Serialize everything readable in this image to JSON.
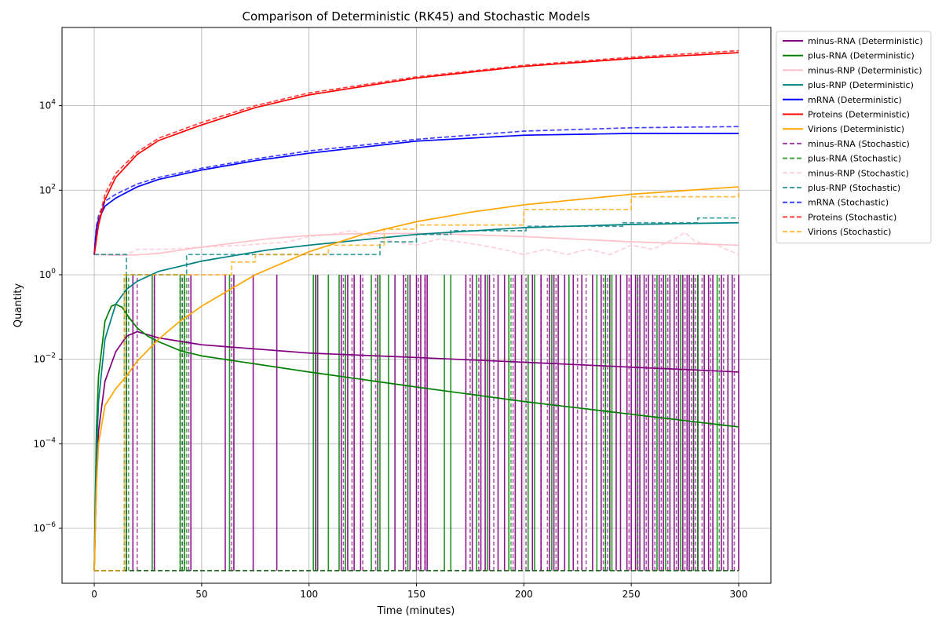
{
  "chart_data": {
    "type": "line",
    "title": "Comparison of Deterministic (RK45) and Stochastic Models",
    "xlabel": "Time (minutes)",
    "ylabel": "Quantity",
    "xlim": [
      -15,
      315
    ],
    "ylim_log10": [
      -7.3,
      5.85
    ],
    "yscale": "log",
    "grid": true,
    "legend_position": "outside top-right",
    "x_ticks": [
      0,
      50,
      100,
      150,
      200,
      250,
      300
    ],
    "y_ticks": [
      {
        "exp": 4,
        "label": "10^4"
      },
      {
        "exp": 2,
        "label": "10^2"
      },
      {
        "exp": 0,
        "label": "10^0"
      },
      {
        "exp": -2,
        "label": "10^-2"
      },
      {
        "exp": -4,
        "label": "10^-4"
      },
      {
        "exp": -6,
        "label": "10^-6"
      }
    ],
    "series": [
      {
        "name": "minus-RNA (Deterministic)",
        "color": "#800080",
        "style": "solid",
        "x": [
          0,
          1,
          2,
          5,
          10,
          15,
          20,
          25,
          30,
          50,
          100,
          150,
          200,
          250,
          300
        ],
        "y": [
          1e-07,
          1e-05,
          0.0002,
          0.003,
          0.015,
          0.035,
          0.045,
          0.038,
          0.032,
          0.022,
          0.014,
          0.011,
          0.0085,
          0.0065,
          0.005
        ]
      },
      {
        "name": "plus-RNA (Deterministic)",
        "color": "#008000",
        "style": "solid",
        "x": [
          0,
          1,
          2,
          5,
          8,
          10,
          13,
          16,
          20,
          25,
          30,
          40,
          50,
          100,
          150,
          200,
          250,
          300
        ],
        "y": [
          1e-07,
          0.0002,
          0.004,
          0.08,
          0.18,
          0.2,
          0.17,
          0.1,
          0.055,
          0.035,
          0.026,
          0.016,
          0.012,
          0.005,
          0.0022,
          0.001,
          0.0005,
          0.00025
        ]
      },
      {
        "name": "minus-RNP (Deterministic)",
        "color": "#ffc0cb",
        "style": "solid",
        "x": [
          0,
          10,
          20,
          30,
          50,
          80,
          100,
          120,
          150,
          170,
          200,
          250,
          300
        ],
        "y": [
          3,
          2.9,
          2.95,
          3.2,
          4.5,
          7,
          8.5,
          9.3,
          9.5,
          9,
          8,
          6,
          5
        ]
      },
      {
        "name": "plus-RNP (Deterministic)",
        "color": "#008080",
        "style": "solid",
        "x": [
          0,
          1,
          2,
          5,
          10,
          15,
          20,
          30,
          50,
          80,
          100,
          150,
          200,
          250,
          300
        ],
        "y": [
          1e-07,
          5e-05,
          0.001,
          0.03,
          0.2,
          0.45,
          0.7,
          1.2,
          2.1,
          3.8,
          5,
          9,
          13,
          15.5,
          17
        ]
      },
      {
        "name": "mRNA (Deterministic)",
        "color": "#0000ff",
        "style": "solid",
        "x": [
          0,
          1,
          2,
          5,
          10,
          20,
          30,
          50,
          75,
          100,
          150,
          200,
          250,
          300
        ],
        "y": [
          3,
          12,
          20,
          42,
          65,
          120,
          180,
          300,
          500,
          750,
          1450,
          2000,
          2200,
          2200
        ]
      },
      {
        "name": "Proteins (Deterministic)",
        "color": "#ff0000",
        "style": "solid",
        "x": [
          0,
          2,
          5,
          10,
          20,
          30,
          50,
          75,
          100,
          150,
          200,
          250,
          300
        ],
        "y": [
          3,
          15,
          60,
          200,
          700,
          1500,
          3500,
          9000,
          18000,
          45000,
          85000,
          130000,
          180000
        ]
      },
      {
        "name": "Virions (Deterministic)",
        "color": "#ffa500",
        "style": "solid",
        "x": [
          0,
          1,
          2,
          5,
          10,
          15,
          20,
          30,
          40,
          50,
          75,
          100,
          125,
          150,
          175,
          200,
          250,
          300
        ],
        "y": [
          1e-07,
          1e-05,
          0.0001,
          0.0008,
          0.002,
          0.004,
          0.009,
          0.03,
          0.08,
          0.18,
          1,
          3.5,
          9,
          18,
          30,
          45,
          80,
          120
        ]
      },
      {
        "name": "minus-RNA (Stochastic)",
        "color": "#800080",
        "style": "dashed",
        "x": [
          0,
          300
        ],
        "y": [
          1e-07,
          1e-07
        ]
      },
      {
        "name": "plus-RNA (Stochastic)",
        "color": "#008000",
        "style": "dashed",
        "x": [
          0,
          300
        ],
        "y": [
          1e-07,
          1e-07
        ]
      },
      {
        "name": "minus-RNP (Stochastic)",
        "color": "#ffc0cb",
        "style": "dashed",
        "x": [
          0,
          15,
          20,
          25,
          35,
          50,
          70,
          90,
          100,
          110,
          120,
          130,
          140,
          150,
          160,
          170,
          180,
          190,
          200,
          210,
          220,
          230,
          240,
          250,
          260,
          270,
          275,
          280,
          290,
          300
        ],
        "y": [
          3,
          3,
          4,
          4,
          4,
          4.5,
          5,
          6,
          8,
          9,
          11,
          8,
          6,
          5,
          7,
          6,
          5,
          4,
          3,
          4,
          3,
          4,
          3,
          5,
          4,
          7,
          10,
          6,
          5,
          3
        ]
      },
      {
        "name": "plus-RNP (Stochastic)",
        "color": "#008080",
        "style": "dashed",
        "x": [
          0,
          14,
          15,
          42,
          43,
          72,
          73,
          132,
          133,
          150,
          165,
          166,
          200,
          201,
          245,
          246,
          280,
          281,
          300
        ],
        "y": [
          3,
          3,
          1,
          1,
          3,
          3,
          3,
          3,
          6,
          9,
          9,
          11,
          11,
          14,
          14,
          17,
          17,
          22,
          22
        ]
      },
      {
        "name": "mRNA (Stochastic)",
        "color": "#0000ff",
        "style": "dashed",
        "x": [
          0,
          1,
          2,
          5,
          10,
          20,
          30,
          50,
          75,
          100,
          150,
          200,
          250,
          300
        ],
        "y": [
          3,
          14,
          25,
          55,
          80,
          140,
          200,
          330,
          550,
          850,
          1600,
          2500,
          3000,
          3200
        ]
      },
      {
        "name": "Proteins (Stochastic)",
        "color": "#ff0000",
        "style": "dashed",
        "x": [
          0,
          2,
          5,
          10,
          20,
          30,
          50,
          75,
          100,
          150,
          200,
          250,
          300
        ],
        "y": [
          3,
          18,
          80,
          250,
          800,
          1700,
          4000,
          10000,
          20000,
          48000,
          90000,
          140000,
          200000
        ]
      },
      {
        "name": "Virions (Stochastic)",
        "color": "#ffa500",
        "style": "dashed",
        "x": [
          0,
          13,
          14,
          63,
          64,
          74,
          75,
          108,
          109,
          135,
          150,
          200,
          250,
          300
        ],
        "y": [
          1e-07,
          1e-07,
          1,
          1,
          2,
          2,
          3,
          3,
          5,
          12,
          15,
          35,
          70,
          110
        ]
      }
    ],
    "spikes": {
      "purple_solid": [
        18,
        28,
        45,
        61,
        65,
        74,
        85,
        103,
        104,
        115,
        118,
        121,
        124,
        132,
        140,
        144,
        147,
        150,
        152,
        154,
        155,
        173,
        176,
        180,
        182,
        184,
        188,
        191,
        196,
        199,
        204,
        208,
        212,
        214,
        216,
        219,
        223,
        227,
        232,
        236,
        240,
        243,
        245,
        248,
        250,
        252,
        254,
        256,
        258,
        260,
        263,
        265,
        268,
        270,
        272,
        274,
        276,
        277,
        279,
        281,
        284,
        286,
        288,
        292,
        295,
        297,
        300
      ],
      "green_solid": [
        15,
        27,
        40,
        42,
        63,
        102,
        109,
        114,
        117,
        129,
        133,
        137,
        146,
        163,
        166,
        178,
        183,
        193,
        202,
        205,
        213,
        221,
        234,
        238,
        241,
        253,
        262,
        266,
        273,
        281,
        290
      ],
      "purple_dashed": [
        15,
        20,
        28,
        41,
        44,
        64,
        116,
        120,
        125,
        131,
        145,
        151,
        154,
        175,
        179,
        186,
        195,
        201,
        208,
        211,
        215,
        225,
        229,
        237,
        239,
        249,
        253,
        257,
        261,
        264,
        267,
        271,
        275,
        278,
        280,
        283,
        287,
        293,
        298
      ],
      "green_dashed": [
        14,
        15,
        16,
        40,
        41,
        42,
        43,
        132,
        194,
        238,
        240,
        279,
        291
      ],
      "dark_solid": [
        103,
        104
      ]
    }
  }
}
